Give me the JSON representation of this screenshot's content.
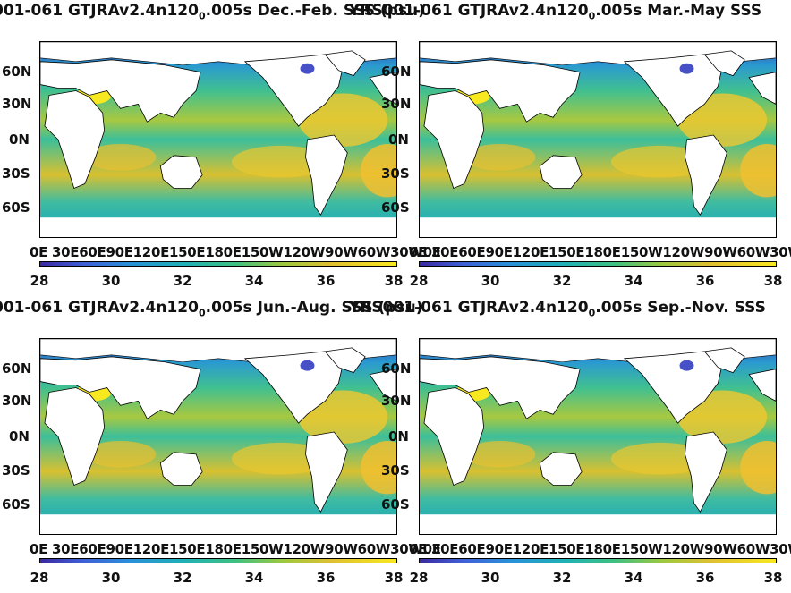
{
  "panels": [
    {
      "title_pre": "001-061 GTJRAv2.4n120",
      "title_sub": "0",
      "title_post": ".005s Dec.-Feb. SSS (psu)"
    },
    {
      "title_pre": "YRS001-061 GTJRAv2.4n120",
      "title_sub": "0",
      "title_post": ".005s Mar.-May SSS"
    },
    {
      "title_pre": "001-061 GTJRAv2.4n120",
      "title_sub": "0",
      "title_post": ".005s Jun.-Aug. SSS (psu)"
    },
    {
      "title_pre": "YRS001-061 GTJRAv2.4n120",
      "title_sub": "0",
      "title_post": ".005s Sep.-Nov. SSS"
    }
  ],
  "lat_labels": [
    "60N",
    "30N",
    "0N",
    "30S",
    "60S"
  ],
  "lon_labels_text": "0E 30E60E90E120E150E180E150W120W90W60W30W0E",
  "colorbar": {
    "ticks": [
      "28",
      "30",
      "32",
      "34",
      "36",
      "38"
    ],
    "min": 28,
    "max": 38,
    "colormap": "parula"
  }
}
